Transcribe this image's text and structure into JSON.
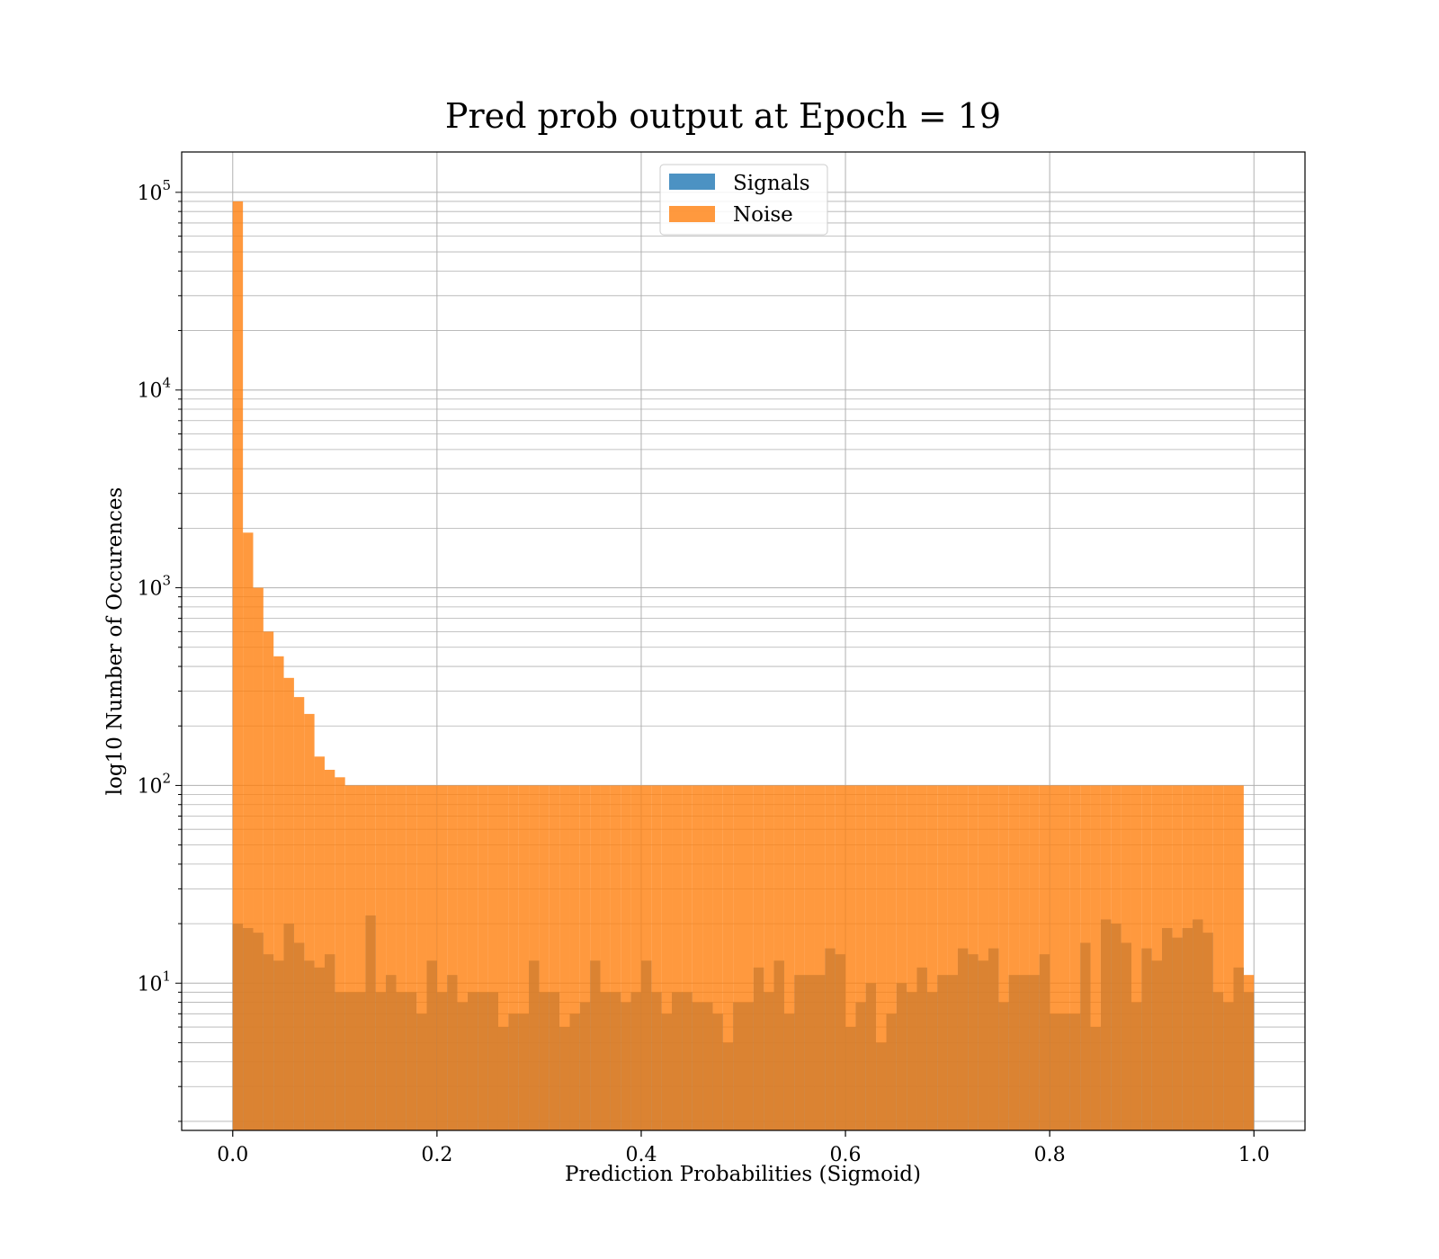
{
  "chart_data": {
    "type": "bar",
    "title": "Pred prob output at Epoch = 19",
    "xlabel": "Prediction Probabilities (Sigmoid)",
    "ylabel": "log10 Number of Occurences",
    "xlim": [
      -0.05,
      1.05
    ],
    "ylim": [
      1.8,
      160000
    ],
    "yscale": "log",
    "grid": true,
    "legend_position": "top-center",
    "x_ticks": [
      0.0,
      0.2,
      0.4,
      0.6,
      0.8,
      1.0
    ],
    "x_tick_labels": [
      "0.0",
      "0.2",
      "0.4",
      "0.6",
      "0.8",
      "1.0"
    ],
    "y_ticks": [
      {
        "value": 10,
        "base": "10",
        "exp": "1"
      },
      {
        "value": 100,
        "base": "10",
        "exp": "2"
      },
      {
        "value": 1000,
        "base": "10",
        "exp": "3"
      },
      {
        "value": 10000,
        "base": "10",
        "exp": "4"
      },
      {
        "value": 100000,
        "base": "10",
        "exp": "5"
      }
    ],
    "bin_range": [
      0,
      1
    ],
    "n_bins": 100,
    "series": [
      {
        "name": "Signals",
        "color": "#1f77b4",
        "alpha": 0.8,
        "values": [
          20,
          19,
          18,
          14,
          13,
          20,
          16,
          13,
          12,
          14,
          9,
          9,
          9,
          22,
          9,
          11,
          9,
          9,
          7,
          13,
          9,
          11,
          8,
          9,
          9,
          9,
          6,
          7,
          7,
          13,
          9,
          9,
          6,
          7,
          8,
          13,
          9,
          9,
          8,
          9,
          13,
          9,
          7,
          9,
          9,
          8,
          8,
          7,
          5,
          8,
          8,
          12,
          9,
          13,
          7,
          11,
          11,
          11,
          15,
          14,
          6,
          8,
          10,
          5,
          7,
          10,
          9,
          12,
          9,
          11,
          11,
          15,
          14,
          13,
          15,
          8,
          11,
          11,
          11,
          14,
          7,
          7,
          7,
          16,
          6,
          21,
          20,
          16,
          8,
          15,
          13,
          19,
          17,
          19,
          21,
          18,
          9,
          8,
          12,
          9
        ]
      },
      {
        "name": "Noise",
        "color": "#ff7f0e",
        "alpha": 0.8,
        "values": [
          90000,
          1900,
          1000,
          600,
          450,
          350,
          280,
          230,
          140,
          120,
          110,
          100,
          100,
          100,
          100,
          100,
          100,
          100,
          100,
          100,
          100,
          100,
          100,
          100,
          100,
          100,
          100,
          100,
          100,
          100,
          100,
          100,
          100,
          100,
          100,
          100,
          100,
          100,
          100,
          100,
          100,
          100,
          100,
          100,
          100,
          100,
          100,
          100,
          100,
          100,
          100,
          100,
          100,
          100,
          100,
          100,
          100,
          100,
          100,
          100,
          100,
          100,
          100,
          100,
          100,
          100,
          100,
          100,
          100,
          100,
          100,
          100,
          100,
          100,
          100,
          100,
          100,
          100,
          100,
          100,
          100,
          100,
          100,
          100,
          100,
          100,
          100,
          100,
          100,
          100,
          100,
          100,
          100,
          100,
          100,
          100,
          100,
          100,
          100,
          11
        ]
      }
    ]
  }
}
